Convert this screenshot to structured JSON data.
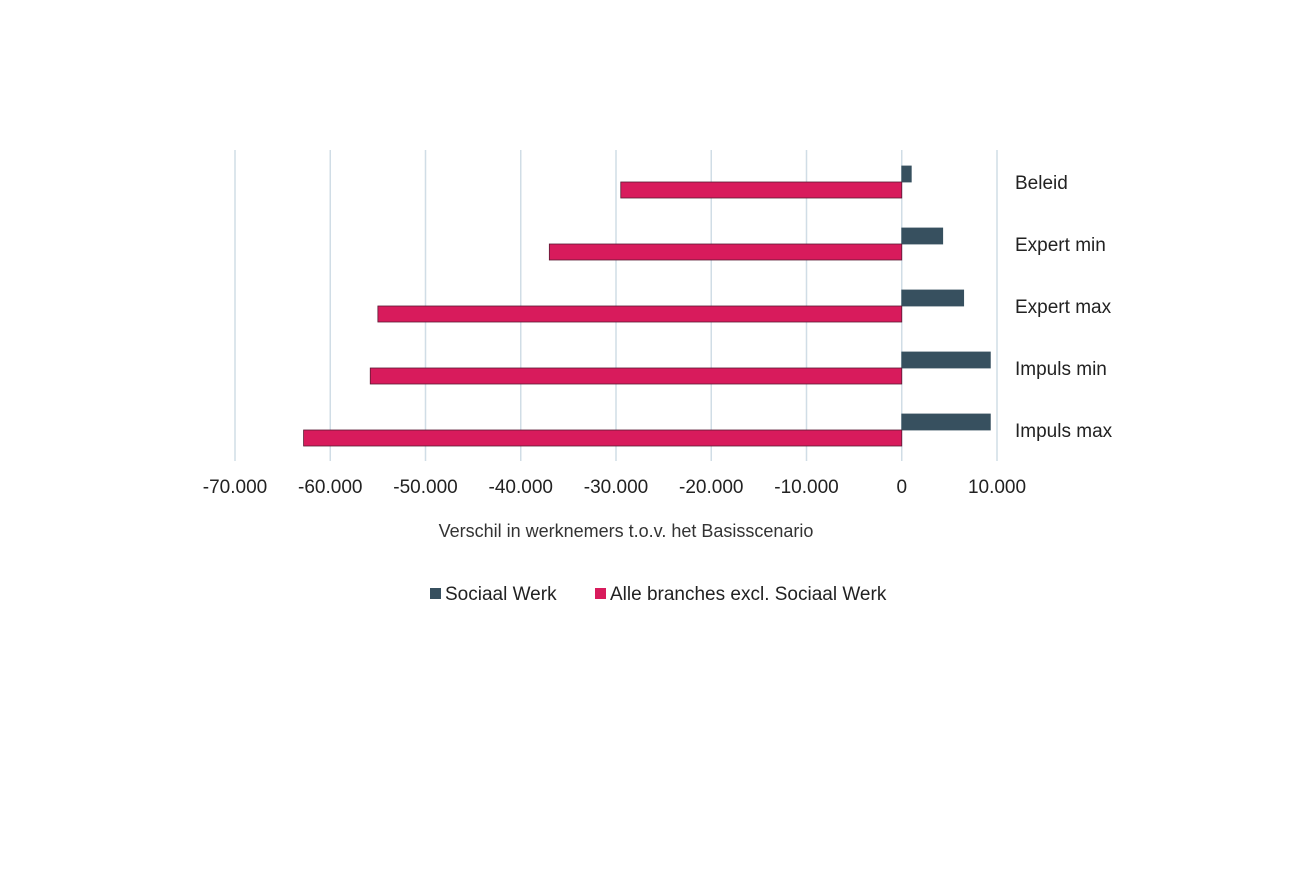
{
  "chart_data": {
    "type": "bar",
    "orientation": "horizontal",
    "categories": [
      "Beleid",
      "Expert min",
      "Expert max",
      "Impuls min",
      "Impuls max"
    ],
    "series": [
      {
        "name": "Sociaal Werk",
        "color": "#37505f",
        "values": [
          1000,
          4300,
          6500,
          9300,
          9300
        ]
      },
      {
        "name": "Alle branches excl. Sociaal Werk",
        "color": "#d81b5c",
        "values": [
          -29500,
          -37000,
          -55000,
          -55800,
          -62800
        ]
      }
    ],
    "xlabel": "Verschil in werknemers t.o.v. het Basisscenario",
    "ylabel": "",
    "xlim": [
      -70000,
      10000
    ],
    "xticks": [
      -70000,
      -60000,
      -50000,
      -40000,
      -30000,
      -20000,
      -10000,
      0,
      10000
    ],
    "xtick_labels": [
      "-70.000",
      "-60.000",
      "-50.000",
      "-40.000",
      "-30.000",
      "-20.000",
      "-10.000",
      "0",
      "10.000"
    ],
    "grid": "vertical",
    "grid_color": "#d0dde6",
    "legend_position": "bottom"
  }
}
